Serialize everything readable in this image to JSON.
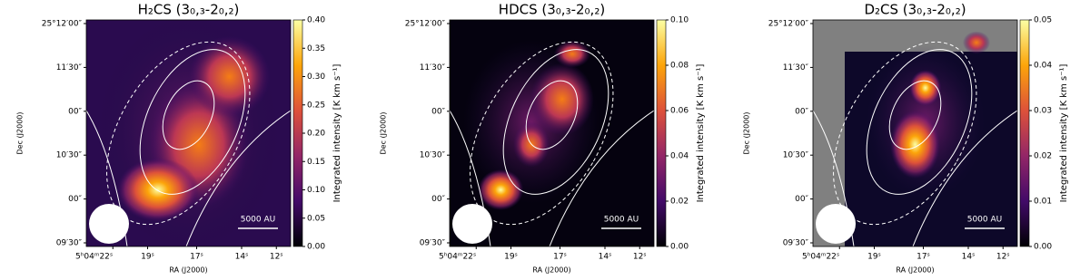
{
  "chart_data": [
    {
      "type": "image",
      "title": "H₂CS (3₀,₃-2₀,₂)",
      "xlabel": "RA (J2000)",
      "ylabel": "Dec (J2000)",
      "xticks": [
        "5ʰ04ᵐ22ˢ",
        "19ˢ",
        "17ˢ",
        "14ˢ",
        "12ˢ"
      ],
      "yticks": [
        "25°12′00″",
        "11′30″",
        "00″",
        "10′30″",
        "00″",
        "09′30″"
      ],
      "scalebar": "5000 AU",
      "colorbar_label": "Integrated intensity [K km s⁻¹]",
      "clim": [
        0,
        0.4
      ],
      "cticks": [
        {
          "value": 0,
          "label": "0.00"
        },
        {
          "value": 0.05,
          "label": "0.05"
        },
        {
          "value": 0.1,
          "label": "0.10"
        },
        {
          "value": 0.15,
          "label": "0.15"
        },
        {
          "value": 0.2,
          "label": "0.20"
        },
        {
          "value": 0.25,
          "label": "0.25"
        },
        {
          "value": 0.3,
          "label": "0.30"
        },
        {
          "value": 0.35,
          "label": "0.35"
        },
        {
          "value": 0.4,
          "label": "0.40"
        }
      ]
    },
    {
      "type": "image",
      "title": "HDCS (3₀,₃-2₀,₂)",
      "xlabel": "RA (J2000)",
      "ylabel": "Dec (J2000)",
      "xticks": [
        "5ʰ04ᵐ22ˢ",
        "19ˢ",
        "17ˢ",
        "14ˢ",
        "12ˢ"
      ],
      "yticks": [
        "25°12′00″",
        "11′30″",
        "00″",
        "10′30″",
        "00″",
        "09′30″"
      ],
      "scalebar": "5000 AU",
      "colorbar_label": "Integrated intensity [K km s⁻¹]",
      "clim": [
        0,
        0.1
      ],
      "cticks": [
        {
          "value": 0,
          "label": "0.00"
        },
        {
          "value": 0.02,
          "label": "0.02"
        },
        {
          "value": 0.04,
          "label": "0.04"
        },
        {
          "value": 0.06,
          "label": "0.06"
        },
        {
          "value": 0.08,
          "label": "0.08"
        },
        {
          "value": 0.1,
          "label": "0.10"
        }
      ]
    },
    {
      "type": "image",
      "title": "D₂CS (3₀,₃-2₀,₂)",
      "xlabel": "RA (J2000)",
      "ylabel": "Dec (J2000)",
      "xticks": [
        "5ʰ04ᵐ22ˢ",
        "19ˢ",
        "17ˢ",
        "14ˢ",
        "12ˢ"
      ],
      "yticks": [
        "25°12′00″",
        "11′30″",
        "00″",
        "10′30″",
        "00″",
        "09′30″"
      ],
      "scalebar": "5000 AU",
      "colorbar_label": "Integrated intensity [K km s⁻¹]",
      "clim": [
        0,
        0.05
      ],
      "cticks": [
        {
          "value": 0,
          "label": "0.00"
        },
        {
          "value": 0.01,
          "label": "0.01"
        },
        {
          "value": 0.02,
          "label": "0.02"
        },
        {
          "value": 0.03,
          "label": "0.03"
        },
        {
          "value": 0.04,
          "label": "0.04"
        },
        {
          "value": 0.05,
          "label": "0.05"
        }
      ]
    }
  ]
}
